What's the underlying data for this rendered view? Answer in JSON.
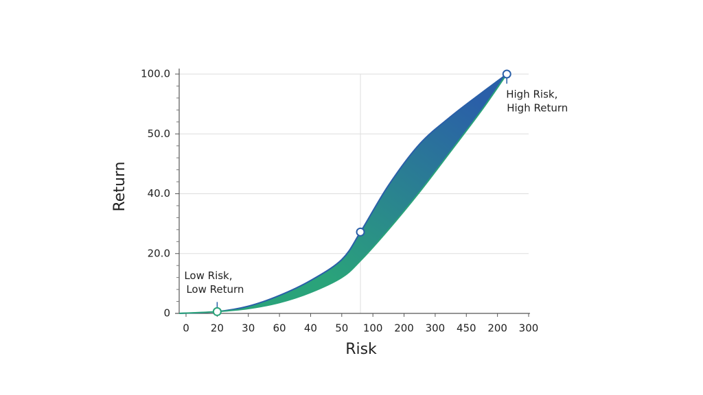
{
  "chart_data": {
    "type": "band",
    "x_label": "Risk",
    "y_label": "Return",
    "xlim": [
      -0.22,
      11
    ],
    "xticks": [
      {
        "value": 0,
        "label": "0"
      },
      {
        "value": 1,
        "label": "20"
      },
      {
        "value": 2,
        "label": "30"
      },
      {
        "value": 3,
        "label": "60"
      },
      {
        "value": 4,
        "label": "40"
      },
      {
        "value": 5,
        "label": "50"
      },
      {
        "value": 6,
        "label": "100"
      },
      {
        "value": 7,
        "label": "200"
      },
      {
        "value": 8,
        "label": "300"
      },
      {
        "value": 9,
        "label": "450"
      },
      {
        "value": 10,
        "label": "200"
      },
      {
        "value": 11,
        "label": "300"
      }
    ],
    "ylim": [
      0,
      4
    ],
    "yticks": [
      {
        "value": 0,
        "label": "0"
      },
      {
        "value": 1,
        "label": "20.0"
      },
      {
        "value": 2,
        "label": "40.0"
      },
      {
        "value": 3,
        "label": "50.0"
      },
      {
        "value": 4,
        "label": "100.0"
      }
    ],
    "grid": true,
    "x": [
      -0.22,
      1,
      2,
      3,
      4,
      5,
      5.6,
      6.5,
      7.5,
      8.5,
      9.5,
      10.3
    ],
    "upper": [
      0,
      0.03,
      0.12,
      0.3,
      0.55,
      0.9,
      1.36,
      2.14,
      2.83,
      3.29,
      3.69,
      4.0
    ],
    "lower": [
      0,
      0.03,
      0.08,
      0.18,
      0.35,
      0.6,
      0.88,
      1.4,
      2.03,
      2.71,
      3.4,
      4.0
    ],
    "colors": {
      "upper": "#2a5fa8",
      "lower": "#2aa37a"
    },
    "points": [
      {
        "x": 1,
        "y": 0.03,
        "color": "#2aa37a",
        "label": [
          "Low Risk,",
          "Low Return"
        ]
      },
      {
        "x": 5.6,
        "y": 1.36,
        "color": "#2a5fa8"
      },
      {
        "x": 10.3,
        "y": 4.0,
        "color": "#2a5fa8",
        "label": [
          "High Risk,",
          "High Return"
        ]
      }
    ]
  }
}
